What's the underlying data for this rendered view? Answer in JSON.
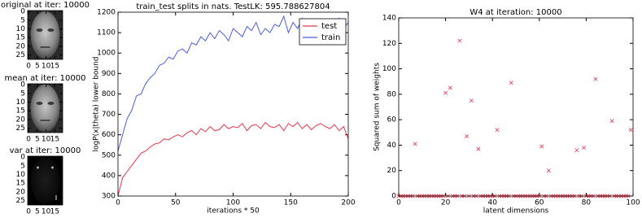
{
  "chart_data": [
    {
      "type": "image",
      "title": "original at iter: 10000",
      "xlim": [
        -0.5,
        19.5
      ],
      "ylim": [
        27.5,
        -0.5
      ],
      "xticks": [
        0,
        5,
        10,
        15
      ],
      "yticks": [
        0,
        5,
        10,
        15,
        20,
        25
      ]
    },
    {
      "type": "image",
      "title": "mean at iter: 10000",
      "xlim": [
        -0.5,
        19.5
      ],
      "ylim": [
        27.5,
        -0.5
      ],
      "xticks": [
        0,
        5,
        10,
        15
      ],
      "yticks": [
        0,
        5,
        10,
        15,
        20,
        25
      ]
    },
    {
      "type": "image",
      "title": "var at iter: 10000",
      "xlim": [
        -0.5,
        19.5
      ],
      "ylim": [
        27.5,
        -0.5
      ],
      "xticks": [
        0,
        5,
        10,
        15
      ],
      "yticks": [
        0,
        5,
        10,
        15,
        20,
        25
      ]
    },
    {
      "type": "line",
      "title": "train_test splits in nats. TestLK: 595.788627804",
      "x_label": "iterations * 50",
      "y_label": "logP(x|theta) lower bound",
      "xlim": [
        0,
        200
      ],
      "ylim": [
        300,
        1200
      ],
      "xticks": [
        0,
        50,
        100,
        150,
        200
      ],
      "yticks": [
        300,
        400,
        500,
        600,
        700,
        800,
        900,
        1000,
        1100,
        1200
      ],
      "legend": "upper right",
      "x": [
        0,
        4,
        8,
        12,
        16,
        20,
        24,
        28,
        32,
        36,
        40,
        44,
        48,
        52,
        56,
        60,
        64,
        68,
        72,
        76,
        80,
        84,
        88,
        92,
        96,
        100,
        104,
        108,
        112,
        116,
        120,
        124,
        128,
        132,
        136,
        140,
        144,
        148,
        152,
        156,
        160,
        164,
        168,
        172,
        176,
        180,
        184,
        188,
        192,
        196,
        200
      ],
      "series": [
        {
          "name": "test",
          "color": "#e8364a",
          "values": [
            300,
            390,
            420,
            450,
            480,
            510,
            520,
            540,
            555,
            560,
            580,
            575,
            590,
            600,
            590,
            610,
            620,
            600,
            630,
            615,
            640,
            620,
            625,
            650,
            630,
            640,
            635,
            655,
            620,
            645,
            650,
            630,
            660,
            640,
            635,
            650,
            620,
            655,
            640,
            660,
            630,
            650,
            625,
            645,
            655,
            640,
            630,
            650,
            620,
            640,
            580
          ]
        },
        {
          "name": "train",
          "color": "#4a5ce0",
          "values": [
            520,
            600,
            680,
            720,
            790,
            800,
            850,
            880,
            900,
            940,
            950,
            980,
            970,
            1010,
            1020,
            1000,
            1050,
            1040,
            1080,
            1060,
            1100,
            1070,
            1110,
            1090,
            1060,
            1120,
            1100,
            1080,
            1130,
            1110,
            1150,
            1090,
            1120,
            1100,
            1140,
            1130,
            1180,
            1100,
            1150,
            1120,
            1170,
            1130,
            1100,
            1160,
            1140,
            1110,
            1150,
            1130,
            1170,
            1120,
            1150
          ]
        }
      ]
    },
    {
      "type": "scatter",
      "title": "W4 at iteration: 10000",
      "x_label": "latent dimensions",
      "y_label": "Squared sum of weights",
      "xlim": [
        0,
        100
      ],
      "ylim": [
        0,
        140
      ],
      "xticks": [
        0,
        20,
        40,
        60,
        80,
        100
      ],
      "yticks": [
        0,
        20,
        40,
        60,
        80,
        100,
        120,
        140
      ],
      "color": "#e8364a",
      "x": [
        0,
        1,
        2,
        3,
        4,
        5,
        6,
        7,
        8,
        9,
        10,
        11,
        12,
        13,
        14,
        15,
        16,
        17,
        18,
        19,
        20,
        21,
        22,
        23,
        24,
        25,
        26,
        27,
        28,
        29,
        30,
        31,
        32,
        33,
        34,
        35,
        36,
        37,
        38,
        39,
        40,
        41,
        42,
        43,
        44,
        45,
        46,
        47,
        48,
        49,
        50,
        51,
        52,
        53,
        54,
        55,
        56,
        57,
        58,
        59,
        60,
        61,
        62,
        63,
        64,
        65,
        66,
        67,
        68,
        69,
        70,
        71,
        72,
        73,
        74,
        75,
        76,
        77,
        78,
        79,
        80,
        81,
        82,
        83,
        84,
        85,
        86,
        87,
        88,
        89,
        90,
        91,
        92,
        93,
        94,
        95,
        96,
        97,
        98,
        99
      ],
      "values": [
        0,
        0,
        0,
        0,
        0,
        0,
        0,
        41,
        0,
        0,
        0,
        0,
        0,
        0,
        0,
        0,
        0,
        0,
        0,
        0,
        81,
        0,
        85,
        0,
        0,
        0,
        122,
        0,
        0,
        47,
        0,
        75,
        0,
        0,
        37,
        0,
        0,
        0,
        0,
        0,
        0,
        0,
        52,
        0,
        0,
        0,
        0,
        0,
        89,
        0,
        0,
        0,
        0,
        0,
        0,
        0,
        0,
        0,
        0,
        0,
        0,
        39,
        0,
        0,
        20,
        0,
        0,
        0,
        0,
        0,
        0,
        0,
        0,
        0,
        0,
        0,
        36,
        0,
        0,
        38,
        0,
        0,
        0,
        0,
        92,
        0,
        0,
        0,
        0,
        0,
        0,
        59,
        0,
        0,
        0,
        0,
        0,
        0,
        0,
        52
      ]
    }
  ]
}
